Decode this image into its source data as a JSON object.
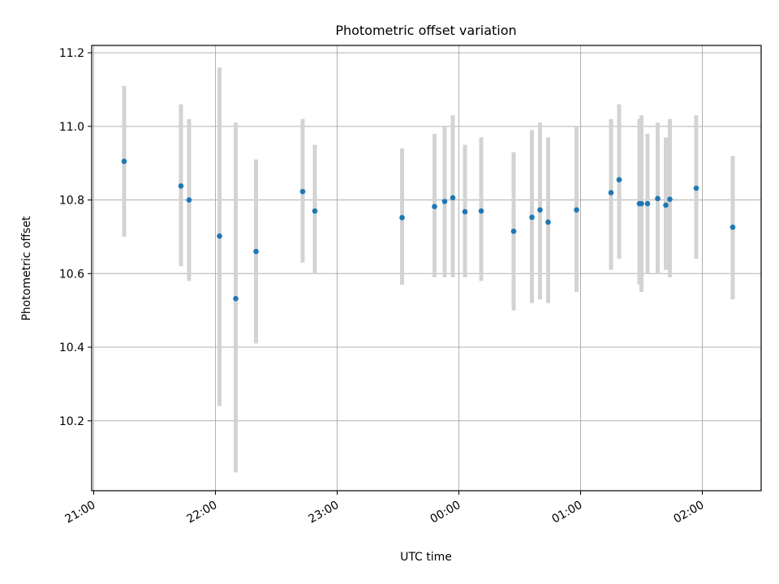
{
  "chart_data": {
    "type": "scatter",
    "title": "Photometric offset variation",
    "xlabel": "UTC time",
    "ylabel": "Photometric offset",
    "x_tick_labels": [
      "21:00",
      "22:00",
      "23:00",
      "00:00",
      "01:00",
      "02:00"
    ],
    "y_tick_labels": [
      "10.2",
      "10.4",
      "10.6",
      "10.8",
      "11.0",
      "11.2"
    ],
    "x_ticks": [
      "21:00",
      "22:00",
      "23:00",
      "00:00",
      "01:00",
      "02:00"
    ],
    "y_ticks": [
      10.2,
      10.4,
      10.6,
      10.8,
      11.0,
      11.2
    ],
    "xlim": [
      "20:59",
      "02:29"
    ],
    "ylim": [
      10.01,
      11.22
    ],
    "grid": true,
    "colors": {
      "point": "#1f77b4",
      "errorbar": "#d3d3d3"
    },
    "points": [
      {
        "x": "21:15",
        "y": 10.905,
        "ylow": 10.7,
        "yhigh": 11.11
      },
      {
        "x": "21:43",
        "y": 10.838,
        "ylow": 10.62,
        "yhigh": 11.06
      },
      {
        "x": "21:47",
        "y": 10.8,
        "ylow": 10.58,
        "yhigh": 11.02
      },
      {
        "x": "22:02",
        "y": 10.702,
        "ylow": 10.24,
        "yhigh": 11.16
      },
      {
        "x": "22:10",
        "y": 10.532,
        "ylow": 10.06,
        "yhigh": 11.01
      },
      {
        "x": "22:20",
        "y": 10.66,
        "ylow": 10.41,
        "yhigh": 10.91
      },
      {
        "x": "22:43",
        "y": 10.823,
        "ylow": 10.63,
        "yhigh": 11.02
      },
      {
        "x": "22:49",
        "y": 10.77,
        "ylow": 10.6,
        "yhigh": 10.95
      },
      {
        "x": "23:32",
        "y": 10.752,
        "ylow": 10.57,
        "yhigh": 10.94
      },
      {
        "x": "23:48",
        "y": 10.782,
        "ylow": 10.59,
        "yhigh": 10.98
      },
      {
        "x": "23:53",
        "y": 10.796,
        "ylow": 10.59,
        "yhigh": 11.0
      },
      {
        "x": "23:57",
        "y": 10.806,
        "ylow": 10.59,
        "yhigh": 11.03
      },
      {
        "x": "00:03",
        "y": 10.768,
        "ylow": 10.59,
        "yhigh": 10.95
      },
      {
        "x": "00:11",
        "y": 10.77,
        "ylow": 10.58,
        "yhigh": 10.97
      },
      {
        "x": "00:27",
        "y": 10.715,
        "ylow": 10.5,
        "yhigh": 10.93
      },
      {
        "x": "00:36",
        "y": 10.753,
        "ylow": 10.52,
        "yhigh": 10.99
      },
      {
        "x": "00:40",
        "y": 10.773,
        "ylow": 10.53,
        "yhigh": 11.01
      },
      {
        "x": "00:44",
        "y": 10.74,
        "ylow": 10.52,
        "yhigh": 10.97
      },
      {
        "x": "00:58",
        "y": 10.773,
        "ylow": 10.55,
        "yhigh": 11.0
      },
      {
        "x": "01:15",
        "y": 10.82,
        "ylow": 10.61,
        "yhigh": 11.02
      },
      {
        "x": "01:19",
        "y": 10.855,
        "ylow": 10.64,
        "yhigh": 11.06
      },
      {
        "x": "01:29",
        "y": 10.79,
        "ylow": 10.57,
        "yhigh": 11.02
      },
      {
        "x": "01:30",
        "y": 10.79,
        "ylow": 10.55,
        "yhigh": 11.03
      },
      {
        "x": "01:33",
        "y": 10.79,
        "ylow": 10.6,
        "yhigh": 10.98
      },
      {
        "x": "01:38",
        "y": 10.804,
        "ylow": 10.6,
        "yhigh": 11.01
      },
      {
        "x": "01:42",
        "y": 10.786,
        "ylow": 10.61,
        "yhigh": 10.97
      },
      {
        "x": "01:44",
        "y": 10.802,
        "ylow": 10.59,
        "yhigh": 11.02
      },
      {
        "x": "01:57",
        "y": 10.832,
        "ylow": 10.64,
        "yhigh": 11.03
      },
      {
        "x": "02:15",
        "y": 10.726,
        "ylow": 10.53,
        "yhigh": 10.92
      }
    ]
  }
}
